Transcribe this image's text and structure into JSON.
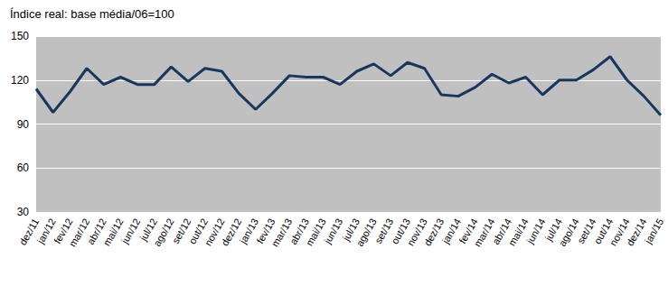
{
  "chart_data": {
    "type": "line",
    "title": "Índice real: base média/06=100",
    "categories": [
      "dez/11",
      "jan/12",
      "fev/12",
      "mar/12",
      "abr/12",
      "mai/12",
      "jun/12",
      "jul/12",
      "ago/12",
      "set/12",
      "out/12",
      "nov/12",
      "dez/12",
      "jan/13",
      "fev/13",
      "mar/13",
      "abr/13",
      "mai/13",
      "jun/13",
      "jul/13",
      "ago/13",
      "set/13",
      "out/13",
      "nov/13",
      "dez/13",
      "jan/14",
      "fev/14",
      "mar/14",
      "abr/14",
      "mai/14",
      "jun/14",
      "jul/14",
      "ago/14",
      "set/14",
      "out/14",
      "nov/14",
      "dez/14",
      "jan/15"
    ],
    "values": [
      114,
      98,
      112,
      128,
      117,
      122,
      117,
      117,
      129,
      119,
      128,
      126,
      111,
      100,
      111,
      123,
      122,
      122,
      117,
      126,
      131,
      123,
      132,
      128,
      110,
      109,
      115,
      124,
      118,
      122,
      110,
      120,
      120,
      127,
      136,
      120,
      109,
      96
    ],
    "color": "#17375e",
    "ylim": [
      30,
      150
    ],
    "yticks": [
      30,
      60,
      90,
      120,
      150
    ],
    "grid": true
  }
}
